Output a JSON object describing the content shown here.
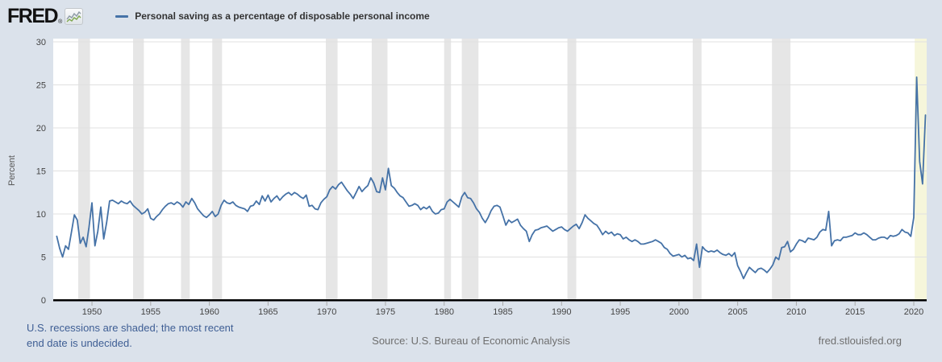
{
  "header": {
    "logo_text": "FRED",
    "logo_reg": "®",
    "legend": {
      "series_label": "Personal saving as a percentage of disposable personal income"
    }
  },
  "footer": {
    "notes_line1": "U.S. recessions are shaded; the most recent",
    "notes_line2": "end date is undecided.",
    "source": "Source: U.S. Bureau of Economic Analysis",
    "site": "fred.stlouisfed.org"
  },
  "colors": {
    "background": "#dbe2eb",
    "plot_bg": "#ffffff",
    "line": "#4572a7",
    "recession_band": "#e6e6e6",
    "undecided_recession_band": "#f6f6db",
    "grid": "#e0e0e0",
    "axis": "#000000",
    "tick_text": "#444444",
    "axis_label_text": "#555555",
    "notes_text": "#3e5e94",
    "footer_text": "#6f6f6f"
  },
  "chart_data": {
    "type": "line",
    "title": "Personal saving as a percentage of disposable personal income",
    "xlabel": "",
    "ylabel": "Percent",
    "legend_position": "top-left",
    "grid": true,
    "frequency": "quarterly",
    "x_start_year": 1947,
    "x_end_year": 2021.0,
    "xlim": [
      1946.7,
      2021.1
    ],
    "ylim": [
      0,
      30
    ],
    "x_ticks": [
      1950,
      1955,
      1960,
      1965,
      1970,
      1975,
      1980,
      1985,
      1990,
      1995,
      2000,
      2005,
      2010,
      2015,
      2020
    ],
    "y_ticks": [
      0,
      5,
      10,
      15,
      20,
      25,
      30
    ],
    "values": [
      7.4,
      6.0,
      5.0,
      6.3,
      5.9,
      7.9,
      9.9,
      9.3,
      6.6,
      7.3,
      6.2,
      8.5,
      11.3,
      6.3,
      8.0,
      10.8,
      7.1,
      9.0,
      11.5,
      11.6,
      11.4,
      11.2,
      11.5,
      11.3,
      11.2,
      11.5,
      11.0,
      10.7,
      10.4,
      10.0,
      10.2,
      10.6,
      9.5,
      9.3,
      9.7,
      10.0,
      10.5,
      10.9,
      11.2,
      11.3,
      11.1,
      11.4,
      11.2,
      10.8,
      11.4,
      11.1,
      11.8,
      11.3,
      10.6,
      10.2,
      9.8,
      9.6,
      9.9,
      10.3,
      9.7,
      10.0,
      11.0,
      11.6,
      11.3,
      11.2,
      11.4,
      11.0,
      10.8,
      10.7,
      10.6,
      10.3,
      10.9,
      11.0,
      11.5,
      11.1,
      12.1,
      11.5,
      12.2,
      11.4,
      11.8,
      12.1,
      11.6,
      12.0,
      12.3,
      12.5,
      12.2,
      12.5,
      12.3,
      12.0,
      11.8,
      12.2,
      10.9,
      11.0,
      10.6,
      10.5,
      11.3,
      11.7,
      12.0,
      12.8,
      13.2,
      12.9,
      13.4,
      13.7,
      13.2,
      12.7,
      12.3,
      11.8,
      12.5,
      13.2,
      12.6,
      13.0,
      13.3,
      14.2,
      13.6,
      12.6,
      12.5,
      14.2,
      12.8,
      15.3,
      13.3,
      13.0,
      12.5,
      12.1,
      11.9,
      11.4,
      10.9,
      11.0,
      11.2,
      11.0,
      10.5,
      10.8,
      10.6,
      10.9,
      10.3,
      10.0,
      10.1,
      10.5,
      10.6,
      11.4,
      11.7,
      11.4,
      11.1,
      10.8,
      12.0,
      12.5,
      11.9,
      11.8,
      11.3,
      10.6,
      10.2,
      9.5,
      9.0,
      9.6,
      10.4,
      10.9,
      11.0,
      10.8,
      9.8,
      8.7,
      9.3,
      9.0,
      9.2,
      9.4,
      8.7,
      8.3,
      8.0,
      6.8,
      7.6,
      8.1,
      8.2,
      8.4,
      8.5,
      8.6,
      8.3,
      8.0,
      8.2,
      8.4,
      8.5,
      8.2,
      8.0,
      8.3,
      8.6,
      8.8,
      8.3,
      9.0,
      9.9,
      9.5,
      9.2,
      8.9,
      8.7,
      8.2,
      7.6,
      8.0,
      7.7,
      7.9,
      7.5,
      7.7,
      7.6,
      7.1,
      7.3,
      7.0,
      6.8,
      7.0,
      6.8,
      6.5,
      6.5,
      6.6,
      6.7,
      6.8,
      7.0,
      6.8,
      6.6,
      6.1,
      5.9,
      5.4,
      5.1,
      5.2,
      5.3,
      5.0,
      5.2,
      4.8,
      4.9,
      4.6,
      6.5,
      3.8,
      6.2,
      5.8,
      5.6,
      5.7,
      5.6,
      5.8,
      5.5,
      5.3,
      5.2,
      5.4,
      5.1,
      5.5,
      4.0,
      3.3,
      2.5,
      3.2,
      3.8,
      3.5,
      3.2,
      3.6,
      3.7,
      3.5,
      3.2,
      3.6,
      4.1,
      5.0,
      4.7,
      6.1,
      6.2,
      6.8,
      5.6,
      5.9,
      6.5,
      7.0,
      6.9,
      6.7,
      7.2,
      7.1,
      7.0,
      7.3,
      7.9,
      8.2,
      8.1,
      10.3,
      6.3,
      6.9,
      7.0,
      6.9,
      7.3,
      7.3,
      7.4,
      7.5,
      7.8,
      7.6,
      7.6,
      7.8,
      7.6,
      7.3,
      7.0,
      7.0,
      7.2,
      7.3,
      7.3,
      7.1,
      7.5,
      7.4,
      7.5,
      7.7,
      8.2,
      7.9,
      7.8,
      7.4,
      9.6,
      25.9,
      16.1,
      13.5,
      21.5
    ],
    "recessions": [
      [
        1948.83,
        1949.83
      ],
      [
        1953.5,
        1954.42
      ],
      [
        1957.58,
        1958.33
      ],
      [
        1960.25,
        1961.08
      ],
      [
        1969.92,
        1970.92
      ],
      [
        1973.83,
        1975.17
      ],
      [
        1980.0,
        1980.58
      ],
      [
        1981.5,
        1982.92
      ],
      [
        1990.5,
        1991.25
      ],
      [
        2001.17,
        2001.92
      ],
      [
        2007.92,
        2009.5
      ]
    ],
    "undecided_recession_start": 2020.08
  }
}
